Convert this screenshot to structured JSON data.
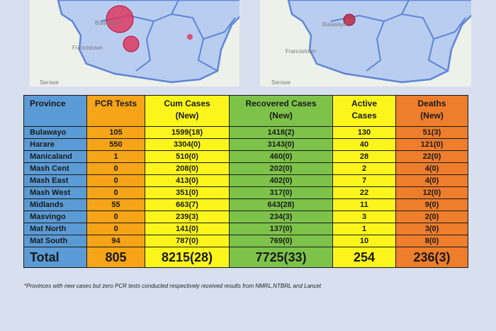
{
  "maps": {
    "left_labels": [
      "Francistown",
      "Serowe",
      "Bulawayo"
    ],
    "right_labels": [
      "Francistown",
      "Serowe",
      "Bulawayo"
    ],
    "bubble_color": "#e0315a",
    "region_color": "#b9cdf0"
  },
  "table": {
    "headers": {
      "province": "Province",
      "pcr": "PCR Tests",
      "cum_line1": "Cum Cases",
      "cum_line2": "(New)",
      "rec_line1": "Recovered Cases",
      "rec_line2": "(New)",
      "act_line1": "Active",
      "act_line2": "Cases",
      "dth_line1": "Deaths",
      "dth_line2": "(New)"
    },
    "rows": [
      {
        "province": "Bulawayo",
        "pcr": "105",
        "cum": "1599(18)",
        "rec": "1418(2)",
        "act": "130",
        "dth": "51(3)"
      },
      {
        "province": "Harare",
        "pcr": "550",
        "cum": "3304(0)",
        "rec": "3143(0)",
        "act": "40",
        "dth": "121(0)"
      },
      {
        "province": "Manicaland",
        "pcr": "1",
        "cum": "510(0)",
        "rec": "460(0)",
        "act": "28",
        "dth": "22(0)"
      },
      {
        "province": "Mash Cent",
        "pcr": "0",
        "cum": "208(0)",
        "rec": "202(0)",
        "act": "2",
        "dth": "4(0)"
      },
      {
        "province": "Mash East",
        "pcr": "0",
        "cum": "413(0)",
        "rec": "402(0)",
        "act": "7",
        "dth": "4(0)"
      },
      {
        "province": "Mash West",
        "pcr": "0",
        "cum": "351(0)",
        "rec": "317(0)",
        "act": "22",
        "dth": "12(0)"
      },
      {
        "province": "Midlands",
        "pcr": "55",
        "cum": "663(7)",
        "rec": "643(28)",
        "act": "11",
        "dth": "9(0)"
      },
      {
        "province": "Masvingo",
        "pcr": "0",
        "cum": "239(3)",
        "rec": "234(3)",
        "act": "3",
        "dth": "2(0)"
      },
      {
        "province": "Mat North",
        "pcr": "0",
        "cum": "141(0)",
        "rec": "137(0)",
        "act": "1",
        "dth": "3(0)"
      },
      {
        "province": "Mat South",
        "pcr": "94",
        "cum": "787(0)",
        "rec": "769(0)",
        "act": "10",
        "dth": "8(0)"
      }
    ],
    "total": {
      "province": "Total",
      "pcr": "805",
      "cum": "8215(28)",
      "rec": "7725(33)",
      "act": "254",
      "dth": "236(3)"
    }
  },
  "footnote": "*Provinces  with new cases but zero  PCR tests conducted respectively received results from NMRL,NTBRL and Lancet"
}
